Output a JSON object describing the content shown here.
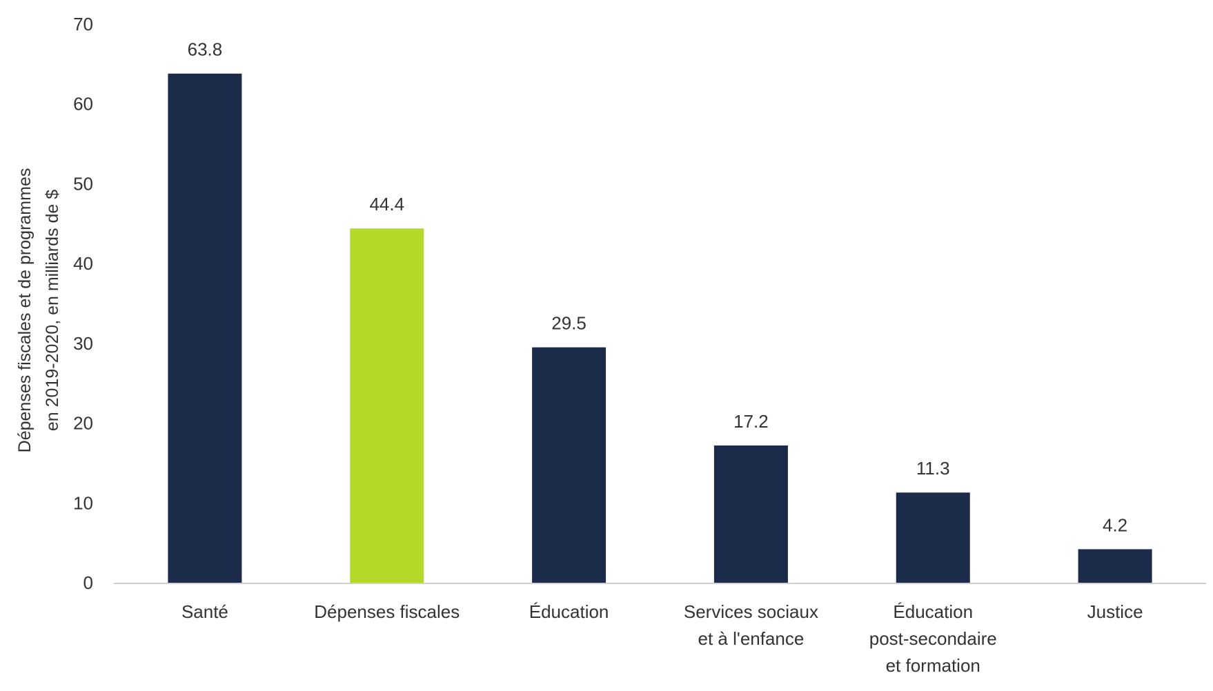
{
  "chart_data": {
    "type": "bar",
    "title": "",
    "xlabel": "",
    "ylabel_lines": [
      "Dépenses fiscales et de programmes",
      "en 2019-2020, en milliards de $"
    ],
    "ylim": [
      0,
      70
    ],
    "yticks": [
      0,
      10,
      20,
      30,
      40,
      50,
      60,
      70
    ],
    "categories": [
      [
        "Santé"
      ],
      [
        "Dépenses fiscales"
      ],
      [
        "Éducation"
      ],
      [
        "Services sociaux",
        "et à l'enfance"
      ],
      [
        "Éducation",
        "post-secondaire",
        "et formation"
      ],
      [
        "Justice"
      ]
    ],
    "values": [
      63.8,
      44.4,
      29.5,
      17.2,
      11.3,
      4.2
    ],
    "value_labels": [
      "63.8",
      "44.4",
      "29.5",
      "17.2",
      "11.3",
      "4.2"
    ],
    "bar_colors": [
      "#1c2b4a",
      "#b5d929",
      "#1c2b4a",
      "#1c2b4a",
      "#1c2b4a",
      "#1c2b4a"
    ],
    "grid": false,
    "legend": "none"
  },
  "colors": {
    "primary": "#1c2b4a",
    "highlight": "#b5d929",
    "axis": "#d0d0d0",
    "text": "#333333"
  }
}
